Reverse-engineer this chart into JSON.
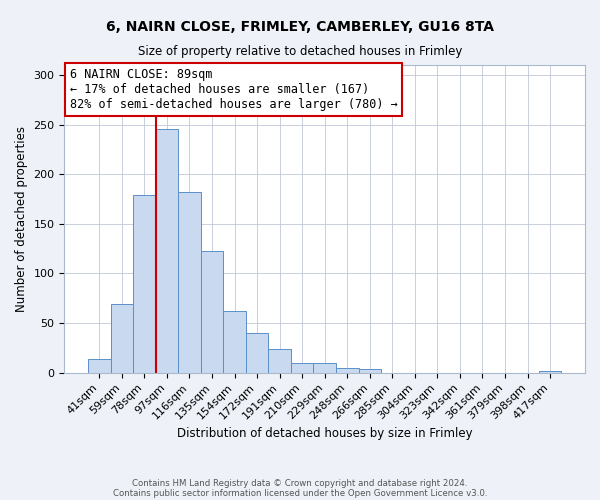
{
  "title": "6, NAIRN CLOSE, FRIMLEY, CAMBERLEY, GU16 8TA",
  "subtitle": "Size of property relative to detached houses in Frimley",
  "xlabel": "Distribution of detached houses by size in Frimley",
  "ylabel": "Number of detached properties",
  "categories": [
    "41sqm",
    "59sqm",
    "78sqm",
    "97sqm",
    "116sqm",
    "135sqm",
    "154sqm",
    "172sqm",
    "191sqm",
    "210sqm",
    "229sqm",
    "248sqm",
    "266sqm",
    "285sqm",
    "304sqm",
    "323sqm",
    "342sqm",
    "361sqm",
    "379sqm",
    "398sqm",
    "417sqm"
  ],
  "values": [
    14,
    69,
    179,
    246,
    182,
    123,
    62,
    40,
    24,
    10,
    10,
    5,
    4,
    0,
    0,
    0,
    0,
    0,
    0,
    0,
    2
  ],
  "bar_color": "#c9d9f0",
  "bar_edge_color": "#5b8fc9",
  "vline_x_idx": 3,
  "vline_color": "#cc0000",
  "annotation_title": "6 NAIRN CLOSE: 89sqm",
  "annotation_line1": "← 17% of detached houses are smaller (167)",
  "annotation_line2": "82% of semi-detached houses are larger (780) →",
  "annotation_box_color": "#cc0000",
  "ylim": [
    0,
    310
  ],
  "yticks": [
    0,
    50,
    100,
    150,
    200,
    250,
    300
  ],
  "footer1": "Contains HM Land Registry data © Crown copyright and database right 2024.",
  "footer2": "Contains public sector information licensed under the Open Government Licence v3.0.",
  "bg_color": "#eef2f8",
  "plot_bg_color": "#ffffff"
}
